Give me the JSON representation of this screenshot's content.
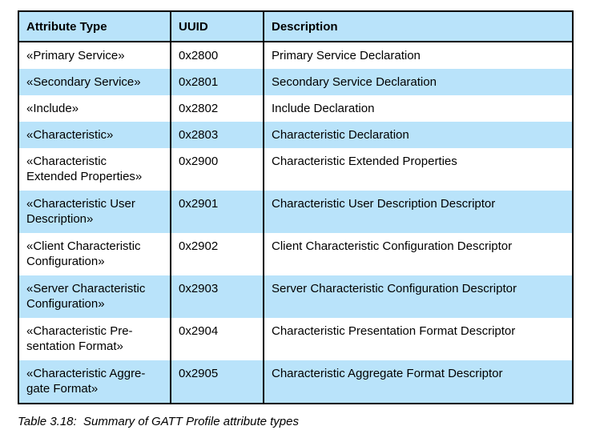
{
  "table": {
    "columns": {
      "attribute_type": "Attribute Type",
      "uuid": "UUID",
      "description": "Description"
    },
    "rows": [
      {
        "attribute_type": "«Primary Service»",
        "uuid": "0x2800",
        "description": "Primary Service Declaration"
      },
      {
        "attribute_type": "«Secondary Service»",
        "uuid": "0x2801",
        "description": "Secondary Service Declaration"
      },
      {
        "attribute_type": "«Include»",
        "uuid": "0x2802",
        "description": "Include Declaration"
      },
      {
        "attribute_type": "«Characteristic»",
        "uuid": "0x2803",
        "description": "Characteristic Declaration"
      },
      {
        "attribute_type": "«Characteristic\nExtended Properties»",
        "uuid": "0x2900",
        "description": "Characteristic Extended Properties"
      },
      {
        "attribute_type": "«Characteristic User\nDescription»",
        "uuid": "0x2901",
        "description": "Characteristic User Description Descriptor"
      },
      {
        "attribute_type": "«Client Characteristic\nConfiguration»",
        "uuid": "0x2902",
        "description": "Client Characteristic Configuration Descriptor"
      },
      {
        "attribute_type": "«Server Characteristic\nConfiguration»",
        "uuid": "0x2903",
        "description": "Server Characteristic Configuration Descriptor"
      },
      {
        "attribute_type": "«Characteristic Pre-\nsentation Format»",
        "uuid": "0x2904",
        "description": "Characteristic Presentation Format Descriptor"
      },
      {
        "attribute_type": "«Characteristic Aggre-\ngate Format»",
        "uuid": "0x2905",
        "description": "Characteristic Aggregate Format Descriptor"
      }
    ],
    "caption": "Table 3.18:  Summary of GATT Profile attribute types",
    "colors": {
      "header_bg": "#b9e3fa",
      "row_alt_bg": "#b9e3fa",
      "border": "#000000",
      "text": "#000000"
    }
  }
}
